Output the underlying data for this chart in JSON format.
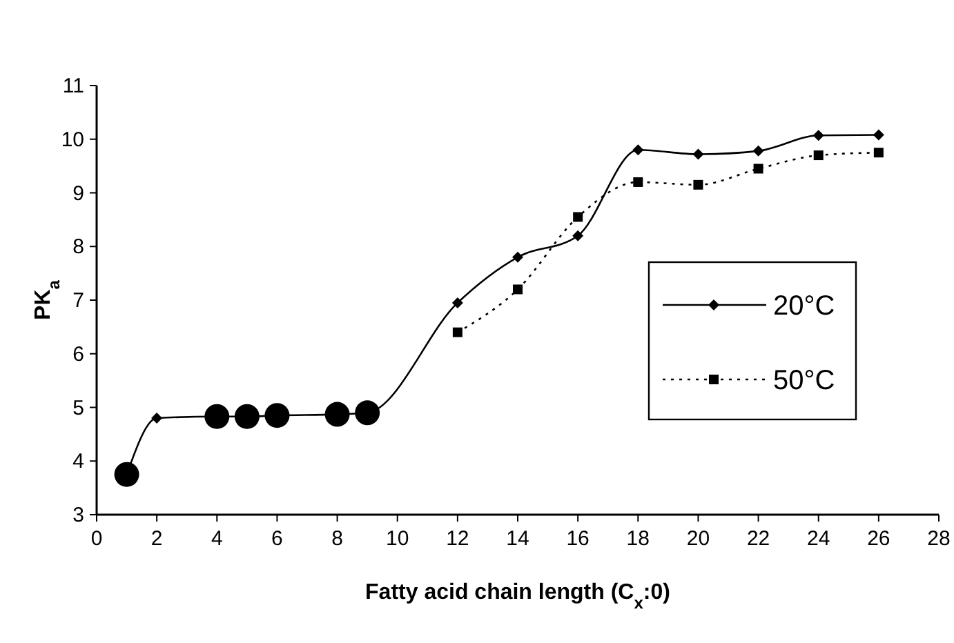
{
  "chart_data": {
    "type": "line",
    "xlabel": "Fatty acid chain length (C$_{x}$:0)",
    "ylabel": "PK$_{a}$",
    "xlim": [
      0,
      28
    ],
    "xticks": [
      0,
      2,
      4,
      6,
      8,
      10,
      12,
      14,
      16,
      18,
      20,
      22,
      24,
      26,
      28
    ],
    "ylim": [
      3,
      11
    ],
    "yticks": [
      3,
      4,
      5,
      6,
      7,
      8,
      9,
      10,
      11
    ],
    "grid": false,
    "legend": "right",
    "series": [
      {
        "name": "20°C",
        "color": "#000000",
        "marker": "diamond",
        "line_style": "solid",
        "x": [
          1,
          2,
          4,
          5,
          6,
          8,
          9,
          12,
          14,
          16,
          18,
          20,
          22,
          24,
          26
        ],
        "values": [
          3.75,
          4.8,
          4.83,
          4.83,
          4.85,
          4.87,
          4.9,
          6.95,
          7.8,
          8.2,
          9.8,
          9.72,
          9.78,
          10.07,
          10.08
        ]
      },
      {
        "name": "50°C",
        "color": "#000000",
        "marker": "square",
        "line_style": "dotted",
        "x": [
          12,
          14,
          16,
          18,
          20,
          22,
          24,
          26
        ],
        "values": [
          6.4,
          7.2,
          8.55,
          9.2,
          9.15,
          9.45,
          9.7,
          9.75
        ]
      },
      {
        "type": "scatter",
        "color": "#000000",
        "marker": "circle",
        "x": [
          1,
          4,
          5,
          6,
          8,
          9
        ],
        "values": [
          3.75,
          4.83,
          4.83,
          4.85,
          4.87,
          4.9
        ]
      }
    ]
  }
}
